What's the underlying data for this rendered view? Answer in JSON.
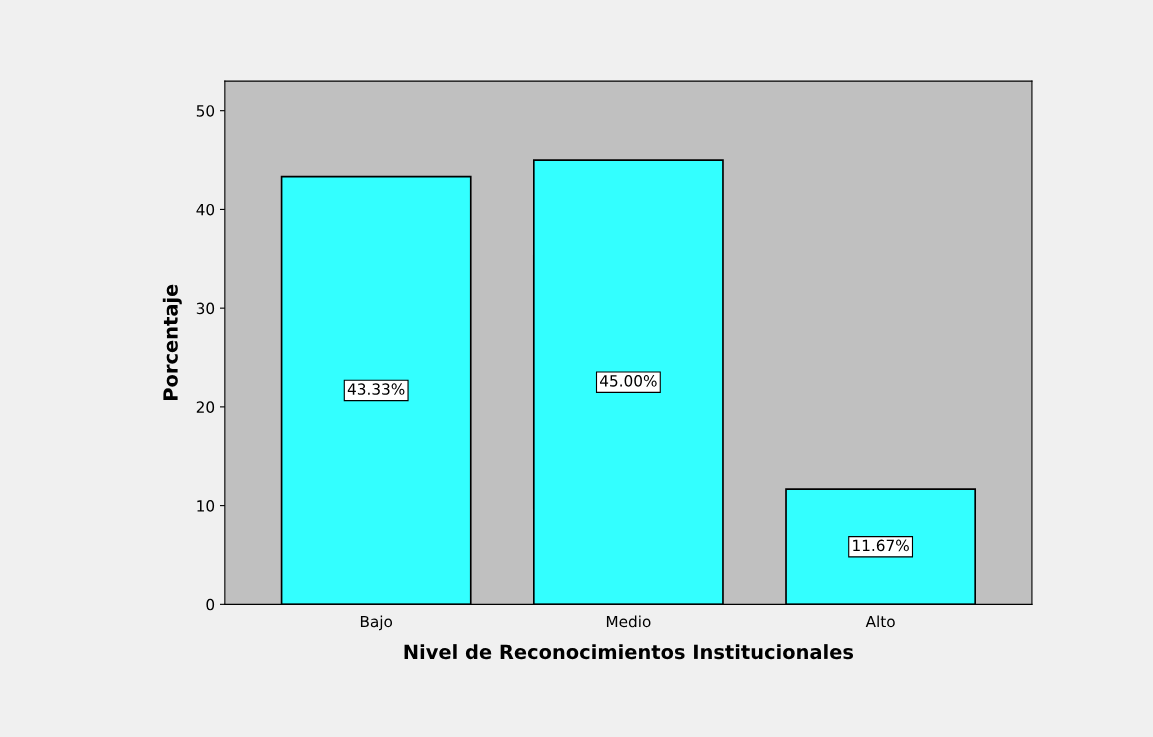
{
  "chart_data": {
    "type": "bar",
    "xlabel": "Nivel de Reconocimientos Institucionales",
    "ylabel": "Porcentaje",
    "categories": [
      "Bajo",
      "Medio",
      "Alto"
    ],
    "values": [
      43.33,
      45.0,
      11.67
    ],
    "value_labels": [
      "43.33%",
      "45.00%",
      "11.67%"
    ],
    "color": "#33ffff",
    "ylim": [
      0,
      53
    ],
    "yticks": [
      0,
      10,
      20,
      30,
      40,
      50
    ],
    "grid": false,
    "legend": false
  }
}
